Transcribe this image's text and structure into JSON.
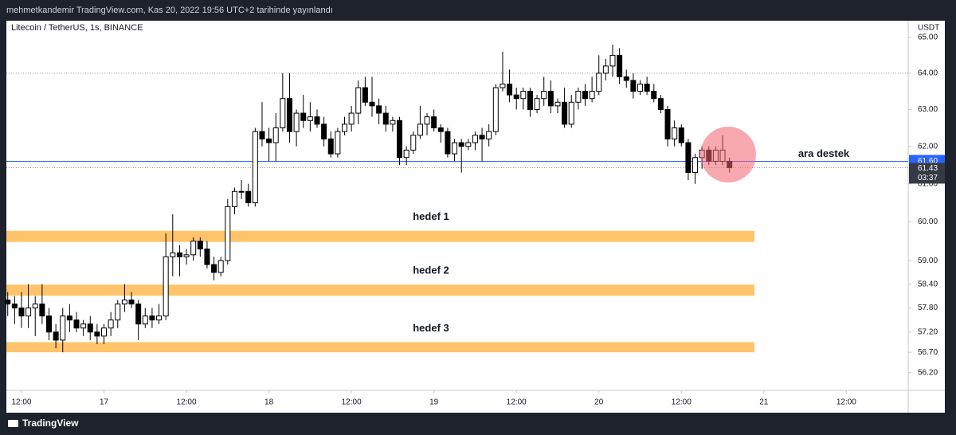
{
  "header": {
    "text": "mehmetkandemir TradingView.com, Kas 20, 2022 19:56 UTC+2 tarihinde yayınlandı"
  },
  "footer": {
    "brand": "TradingView"
  },
  "chart_data": {
    "type": "candlestick",
    "symbol": "Litecoin / TetherUS, 1s, BINANCE",
    "y_unit": "USDT",
    "log": true,
    "up_color": "#ffffff",
    "down_color": "#000000",
    "ylim": [
      55.77,
      65.43
    ],
    "yticks": [
      {
        "value": 65,
        "label": "65.00"
      },
      {
        "value": 64,
        "label": "64.00"
      },
      {
        "value": 63,
        "label": "63.00"
      },
      {
        "value": 62,
        "label": "62.00"
      },
      {
        "value": 61,
        "label": "61.00"
      },
      {
        "value": 60,
        "label": "60.00"
      },
      {
        "value": 59,
        "label": "59.00"
      },
      {
        "value": 58.4,
        "label": "58.40"
      },
      {
        "value": 57.8,
        "label": "57.80"
      },
      {
        "value": 57.2,
        "label": "57.20"
      },
      {
        "value": 56.7,
        "label": "56.70"
      },
      {
        "value": 56.2,
        "label": "56.20"
      }
    ],
    "xlim": [
      -2.2,
      129
    ],
    "xticks": [
      {
        "value": 0,
        "label": "12:00"
      },
      {
        "value": 12,
        "label": "17"
      },
      {
        "value": 24,
        "label": "12:00"
      },
      {
        "value": 36,
        "label": "18"
      },
      {
        "value": 48,
        "label": "12:00"
      },
      {
        "value": 60,
        "label": "19"
      },
      {
        "value": 72,
        "label": "12:00"
      },
      {
        "value": 84,
        "label": "20"
      },
      {
        "value": 96,
        "label": "12:00"
      },
      {
        "value": 108,
        "label": "21"
      },
      {
        "value": 120,
        "label": "12:00"
      }
    ],
    "x": [
      -2,
      -1,
      0,
      1,
      2,
      3,
      4,
      5,
      6,
      7,
      8,
      9,
      10,
      11,
      12,
      13,
      14,
      15,
      16,
      17,
      18,
      19,
      20,
      21,
      22,
      23,
      24,
      25,
      26,
      27,
      28,
      29,
      30,
      31,
      32,
      33,
      34,
      35,
      36,
      37,
      38,
      39,
      40,
      41,
      42,
      43,
      44,
      45,
      46,
      47,
      48,
      49,
      50,
      51,
      52,
      53,
      54,
      55,
      56,
      57,
      58,
      59,
      60,
      61,
      62,
      63,
      64,
      65,
      66,
      67,
      68,
      69,
      70,
      71,
      72,
      73,
      74,
      75,
      76,
      77,
      78,
      79,
      80,
      81,
      82,
      83,
      84,
      85,
      86,
      87,
      88,
      89,
      90,
      91,
      92,
      93,
      94,
      95,
      96,
      97,
      98,
      99,
      100,
      101,
      102,
      103
    ],
    "ohlc": [
      [
        58.0,
        58.2,
        57.6,
        57.9
      ],
      [
        57.9,
        58.1,
        57.4,
        57.8
      ],
      [
        57.8,
        58.2,
        57.3,
        57.6
      ],
      [
        57.6,
        58.4,
        57.3,
        57.8
      ],
      [
        57.8,
        58.1,
        57.1,
        57.9
      ],
      [
        57.9,
        58.4,
        57.4,
        57.6
      ],
      [
        57.6,
        57.8,
        57.0,
        57.2
      ],
      [
        57.2,
        57.4,
        56.8,
        57.0
      ],
      [
        57.0,
        57.8,
        56.7,
        57.6
      ],
      [
        57.6,
        57.9,
        57.2,
        57.5
      ],
      [
        57.5,
        57.7,
        57.2,
        57.3
      ],
      [
        57.3,
        57.5,
        57.1,
        57.4
      ],
      [
        57.4,
        57.6,
        57.0,
        57.2
      ],
      [
        57.2,
        57.4,
        56.9,
        57.1
      ],
      [
        57.1,
        57.4,
        56.9,
        57.3
      ],
      [
        57.3,
        57.7,
        57.1,
        57.5
      ],
      [
        57.5,
        58.0,
        57.3,
        57.9
      ],
      [
        57.9,
        58.4,
        57.7,
        58.0
      ],
      [
        58.0,
        58.2,
        57.8,
        57.9
      ],
      [
        57.9,
        58.0,
        57.0,
        57.4
      ],
      [
        57.4,
        57.8,
        57.3,
        57.6
      ],
      [
        57.6,
        57.8,
        57.3,
        57.5
      ],
      [
        57.5,
        57.9,
        57.4,
        57.6
      ],
      [
        57.6,
        59.7,
        57.5,
        59.1
      ],
      [
        59.1,
        60.2,
        58.6,
        59.2
      ],
      [
        59.2,
        59.4,
        58.6,
        59.1
      ],
      [
        59.1,
        59.3,
        58.9,
        59.15
      ],
      [
        59.15,
        59.6,
        59.0,
        59.5
      ],
      [
        59.5,
        59.6,
        59.1,
        59.3
      ],
      [
        59.3,
        59.5,
        58.8,
        58.9
      ],
      [
        58.9,
        59.1,
        58.5,
        58.7
      ],
      [
        58.7,
        59.1,
        58.6,
        59.0
      ],
      [
        59.0,
        60.6,
        58.9,
        60.4
      ],
      [
        60.4,
        60.9,
        60.2,
        60.8
      ],
      [
        60.8,
        61.1,
        60.6,
        60.8
      ],
      [
        60.8,
        61.0,
        60.4,
        60.5
      ],
      [
        60.5,
        62.5,
        60.4,
        62.4
      ],
      [
        62.4,
        63.2,
        62.0,
        62.2
      ],
      [
        62.2,
        62.5,
        61.6,
        62.1
      ],
      [
        62.1,
        62.9,
        61.6,
        62.5
      ],
      [
        62.5,
        64.0,
        62.4,
        63.3
      ],
      [
        63.3,
        64.0,
        62.1,
        62.4
      ],
      [
        62.4,
        63.0,
        62.0,
        62.9
      ],
      [
        62.9,
        63.4,
        62.5,
        62.7
      ],
      [
        62.7,
        63.2,
        62.4,
        62.8
      ],
      [
        62.8,
        63.0,
        62.5,
        62.6
      ],
      [
        62.6,
        62.8,
        62.0,
        62.2
      ],
      [
        62.2,
        62.4,
        61.7,
        61.8
      ],
      [
        61.8,
        62.5,
        61.7,
        62.4
      ],
      [
        62.4,
        62.8,
        62.3,
        62.6
      ],
      [
        62.6,
        63.1,
        62.4,
        62.9
      ],
      [
        62.9,
        63.8,
        62.6,
        63.6
      ],
      [
        63.6,
        63.9,
        63.1,
        63.2
      ],
      [
        63.2,
        63.9,
        62.8,
        63.1
      ],
      [
        63.1,
        63.3,
        62.6,
        62.9
      ],
      [
        62.9,
        63.1,
        62.4,
        62.6
      ],
      [
        62.6,
        62.8,
        62.4,
        62.7
      ],
      [
        62.7,
        62.8,
        61.5,
        61.7
      ],
      [
        61.7,
        62.0,
        61.5,
        61.9
      ],
      [
        61.9,
        62.4,
        61.8,
        62.3
      ],
      [
        62.3,
        63.1,
        62.2,
        62.6
      ],
      [
        62.6,
        62.9,
        62.3,
        62.8
      ],
      [
        62.8,
        63.0,
        62.4,
        62.5
      ],
      [
        62.5,
        62.6,
        62.1,
        62.4
      ],
      [
        62.4,
        62.5,
        61.7,
        61.8
      ],
      [
        61.8,
        62.2,
        61.6,
        62.1
      ],
      [
        62.1,
        62.2,
        61.3,
        62.0
      ],
      [
        62.0,
        62.2,
        61.9,
        62.1
      ],
      [
        62.1,
        62.4,
        61.9,
        62.3
      ],
      [
        62.3,
        62.5,
        61.6,
        62.2
      ],
      [
        62.2,
        62.6,
        62.0,
        62.4
      ],
      [
        62.4,
        63.7,
        62.3,
        63.6
      ],
      [
        63.6,
        64.6,
        63.5,
        63.7
      ],
      [
        63.7,
        64.1,
        63.2,
        63.4
      ],
      [
        63.4,
        63.6,
        63.0,
        63.3
      ],
      [
        63.3,
        63.6,
        63.0,
        63.5
      ],
      [
        63.5,
        63.6,
        62.8,
        63.0
      ],
      [
        63.0,
        63.4,
        62.9,
        63.3
      ],
      [
        63.3,
        63.9,
        63.1,
        63.5
      ],
      [
        63.5,
        63.8,
        62.9,
        63.1
      ],
      [
        63.1,
        63.3,
        62.9,
        63.2
      ],
      [
        63.2,
        63.6,
        62.5,
        62.6
      ],
      [
        62.6,
        63.4,
        62.5,
        63.2
      ],
      [
        63.2,
        63.6,
        63.0,
        63.5
      ],
      [
        63.5,
        63.7,
        63.1,
        63.3
      ],
      [
        63.3,
        63.9,
        63.2,
        63.5
      ],
      [
        63.5,
        64.5,
        63.4,
        64.0
      ],
      [
        64.0,
        64.4,
        63.8,
        64.2
      ],
      [
        64.2,
        64.8,
        63.9,
        64.5
      ],
      [
        64.5,
        64.7,
        63.7,
        63.9
      ],
      [
        63.9,
        64.1,
        63.6,
        63.8
      ],
      [
        63.8,
        64.0,
        63.3,
        63.5
      ],
      [
        63.5,
        63.8,
        63.4,
        63.7
      ],
      [
        63.7,
        63.9,
        63.4,
        63.5
      ],
      [
        63.5,
        63.7,
        63.2,
        63.3
      ],
      [
        63.3,
        63.4,
        62.9,
        63.0
      ],
      [
        63.0,
        63.1,
        62.0,
        62.2
      ],
      [
        62.2,
        62.7,
        62.0,
        62.5
      ],
      [
        62.5,
        62.6,
        62.0,
        62.1
      ],
      [
        62.1,
        62.2,
        61.1,
        61.3
      ],
      [
        61.3,
        61.8,
        61.0,
        61.7
      ],
      [
        61.7,
        62.0,
        61.4,
        61.9
      ],
      [
        61.9,
        62.0,
        61.5,
        61.6
      ],
      [
        61.6,
        62.0,
        61.5,
        61.9
      ],
      [
        61.6,
        62.3,
        61.5,
        61.9
      ],
      [
        61.6,
        61.7,
        61.3,
        61.43
      ]
    ],
    "zones": [
      {
        "label": "hedef 1",
        "low": 59.48,
        "high": 59.77,
        "color": "#ffc46b"
      },
      {
        "label": "hedef 2",
        "low": 58.11,
        "high": 58.39,
        "color": "#ffc46b"
      },
      {
        "label": "hedef 3",
        "low": 56.7,
        "high": 56.95,
        "color": "#ffc46b"
      }
    ],
    "support": {
      "value": 61.6,
      "value_label": "61.60",
      "text": "ara destek",
      "color": "#2962ff"
    },
    "last_price": {
      "value": 61.43,
      "value_label": "61.43",
      "countdown": "03:37",
      "color": "#363a45"
    },
    "dotted_lines": [
      64,
      61.43
    ]
  }
}
